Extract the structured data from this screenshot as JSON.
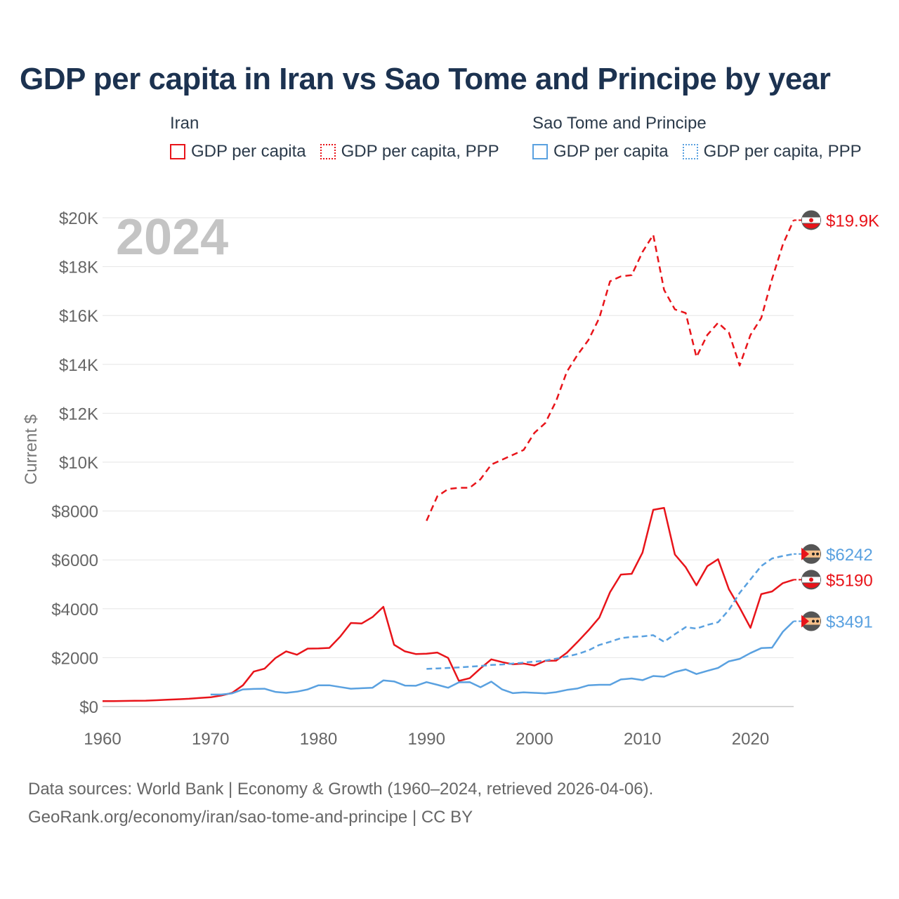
{
  "title": "GDP per capita in Iran vs Sao Tome and Principe by year",
  "legend": {
    "groups": [
      {
        "name": "Iran",
        "items": [
          {
            "label": "GDP per capita",
            "color": "#e8141a",
            "style": "solid"
          },
          {
            "label": "GDP per capita, PPP",
            "color": "#e8141a",
            "style": "dotted"
          }
        ]
      },
      {
        "name": "Sao Tome and Principe",
        "items": [
          {
            "label": "GDP per capita",
            "color": "#5aa1e0",
            "style": "solid"
          },
          {
            "label": "GDP per capita, PPP",
            "color": "#5aa1e0",
            "style": "dotted"
          }
        ]
      }
    ]
  },
  "year_watermark": "2024",
  "footer": {
    "line1": "Data sources: World Bank | Economy & Growth (1960–2024, retrieved 2026-04-06).",
    "line2": "GeoRank.org/economy/iran/sao-tome-and-principe | CC BY"
  },
  "chart_data": {
    "type": "line",
    "title": "GDP per capita in Iran vs Sao Tome and Principe by year",
    "xlabel": "",
    "ylabel": "Current $",
    "xlim": [
      1960,
      2024
    ],
    "ylim": [
      0,
      20000
    ],
    "x_ticks": [
      1960,
      1970,
      1980,
      1990,
      2000,
      2010,
      2020
    ],
    "y_ticks": [
      0,
      2000,
      4000,
      6000,
      8000,
      10000,
      12000,
      14000,
      16000,
      18000,
      20000
    ],
    "y_tick_labels": [
      "$0",
      "$2000",
      "$4000",
      "$6000",
      "$8000",
      "$10K",
      "$12K",
      "$14K",
      "$16K",
      "$18K",
      "$20K"
    ],
    "grid": true,
    "series": [
      {
        "name": "Iran GDP per capita, PPP",
        "color": "#e8141a",
        "dash": "9 6",
        "end_label": "$19.9K",
        "start_year": 1990,
        "values": [
          7600,
          8600,
          8900,
          8950,
          8950,
          9300,
          9900,
          10100,
          10300,
          10500,
          11200,
          11600,
          12500,
          13700,
          14400,
          15000,
          15900,
          17400,
          17600,
          17650,
          18600,
          19300,
          17050,
          16250,
          16100,
          14300,
          15200,
          15700,
          15300,
          13950,
          15200,
          15900,
          17500,
          18900,
          19900
        ]
      },
      {
        "name": "Iran GDP per capita",
        "color": "#e8141a",
        "dash": "",
        "end_label": "$5190",
        "start_year": 1960,
        "values": [
          220,
          225,
          230,
          235,
          240,
          260,
          280,
          300,
          320,
          350,
          380,
          450,
          560,
          870,
          1430,
          1550,
          1980,
          2260,
          2120,
          2370,
          2380,
          2400,
          2860,
          3420,
          3400,
          3660,
          4080,
          2530,
          2260,
          2150,
          2160,
          2210,
          1990,
          1050,
          1160,
          1560,
          1930,
          1820,
          1730,
          1760,
          1680,
          1870,
          1880,
          2200,
          2650,
          3120,
          3640,
          4680,
          5400,
          5430,
          6300,
          8050,
          8130,
          6220,
          5700,
          4960,
          5740,
          6030,
          4800,
          4050,
          3220,
          4600,
          4710,
          5050,
          5190
        ]
      },
      {
        "name": "Sao Tome and Principe GDP per capita, PPP",
        "color": "#5aa1e0",
        "dash": "8 5",
        "end_label": "$6242",
        "start_year": 1990,
        "values": [
          1540,
          1560,
          1580,
          1600,
          1630,
          1660,
          1700,
          1720,
          1760,
          1800,
          1840,
          1880,
          1960,
          2050,
          2150,
          2300,
          2520,
          2650,
          2800,
          2850,
          2870,
          2920,
          2650,
          2960,
          3250,
          3190,
          3340,
          3450,
          3950,
          4650,
          5200,
          5750,
          6060,
          6160,
          6242
        ]
      },
      {
        "name": "Sao Tome and Principe GDP per capita",
        "color": "#5aa1e0",
        "dash": "",
        "end_label": "$3491",
        "start_year": 1970,
        "values": [
          490,
          490,
          540,
          700,
          720,
          730,
          600,
          560,
          610,
          700,
          870,
          870,
          800,
          730,
          750,
          770,
          1070,
          1030,
          860,
          850,
          1000,
          890,
          770,
          990,
          1000,
          790,
          1020,
          700,
          550,
          580,
          560,
          540,
          590,
          680,
          740,
          870,
          890,
          890,
          1110,
          1150,
          1080,
          1250,
          1220,
          1410,
          1520,
          1330,
          1460,
          1580,
          1850,
          1950,
          2190,
          2390,
          2410,
          3060,
          3491
        ]
      }
    ]
  }
}
